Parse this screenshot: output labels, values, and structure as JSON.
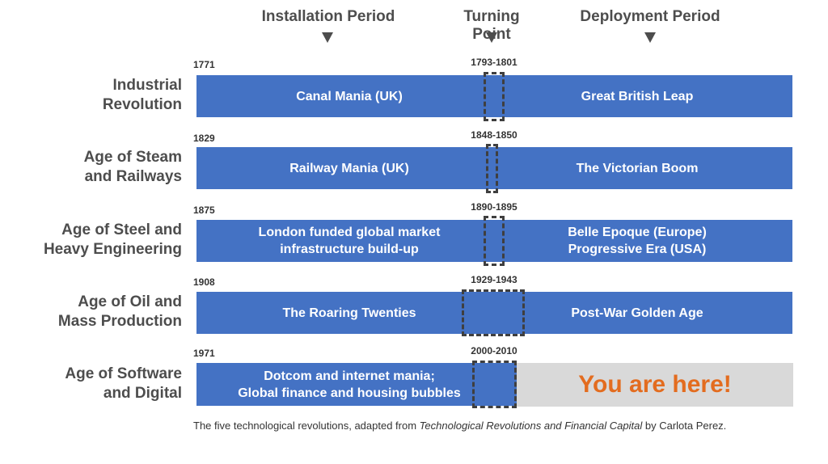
{
  "header": {
    "installation_label": "Installation Period",
    "turning_label": "Turning Point",
    "deployment_label": "Deployment Period"
  },
  "revolutions": [
    {
      "name": "Industrial Revolution",
      "name_lines": [
        "Industrial",
        "Revolution"
      ],
      "start_year": "1771",
      "turning_point": "1793-1801",
      "installation": [
        "Canal Mania (UK)"
      ],
      "deployment": [
        "Great British Leap"
      ]
    },
    {
      "name": "Age of Steam and Railways",
      "name_lines": [
        "Age of Steam",
        "and Railways"
      ],
      "start_year": "1829",
      "turning_point": "1848-1850",
      "installation": [
        "Railway Mania (UK)"
      ],
      "deployment": [
        "The Victorian Boom"
      ]
    },
    {
      "name": "Age of Steel and Heavy Engineering",
      "name_lines": [
        "Age of Steel and",
        "Heavy Engineering"
      ],
      "start_year": "1875",
      "turning_point": "1890-1895",
      "installation": [
        "London funded global market",
        "infrastructure build-up"
      ],
      "deployment": [
        "Belle Epoque (Europe)",
        "Progressive Era (USA)"
      ]
    },
    {
      "name": "Age of Oil and Mass Production",
      "name_lines": [
        "Age of Oil and",
        "Mass Production"
      ],
      "start_year": "1908",
      "turning_point": "1929-1943",
      "installation": [
        "The Roaring Twenties"
      ],
      "deployment": [
        "Post-War Golden Age"
      ]
    },
    {
      "name": "Age of Software and Digital",
      "name_lines": [
        "Age of Software",
        "and Digital"
      ],
      "start_year": "1971",
      "turning_point": "2000-2010",
      "installation": [
        "Dotcom and internet mania;",
        "Global finance and housing bubbles"
      ],
      "deployment": [
        "You are here!"
      ]
    }
  ],
  "caption": {
    "prefix": "The five technological revolutions, adapted from ",
    "book_title": "Technological Revolutions and Financial Capital",
    "suffix": " by Carlota Perez."
  },
  "colors": {
    "bar": "#4472c4",
    "current_phase_bg": "#d9d9d9",
    "highlight_text": "#e36c1f"
  }
}
